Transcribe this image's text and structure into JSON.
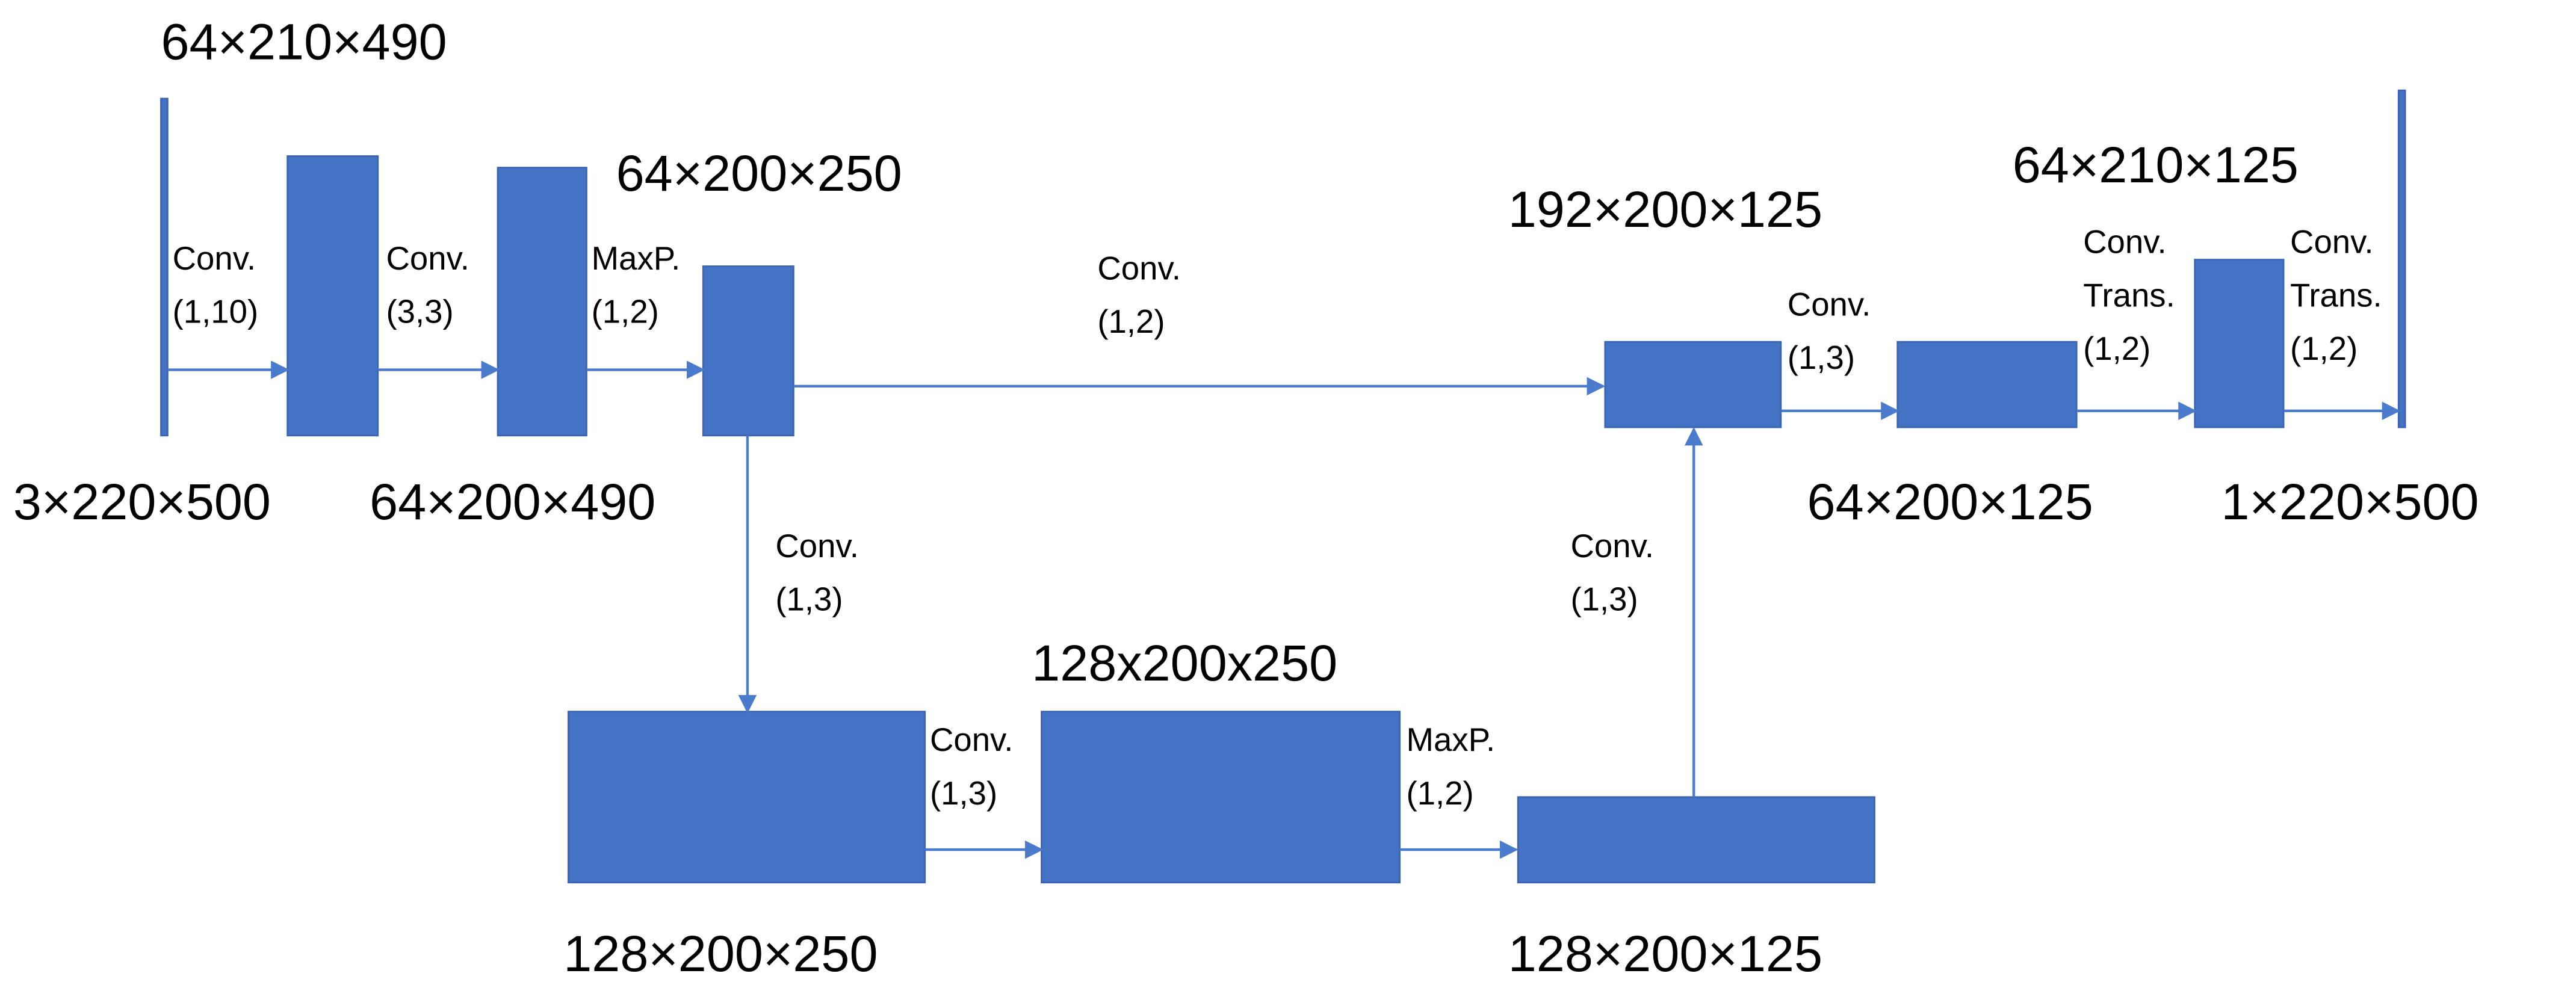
{
  "dimension_labels": [
    "64×210×490",
    "3×220×500",
    "64×200×490",
    "64×200×250",
    "128x200x250",
    "128×200×250",
    "128×200×125",
    "192×200×125",
    "64×210×125",
    "64×200×125",
    "1×220×500"
  ],
  "operations": [
    {
      "lines": [
        "Conv.",
        "(1,10)"
      ]
    },
    {
      "lines": [
        "Conv.",
        "(3,3)"
      ]
    },
    {
      "lines": [
        "MaxP.",
        "(1,2)"
      ]
    },
    {
      "lines": [
        "Conv.",
        "(1,2)"
      ]
    },
    {
      "lines": [
        "Conv.",
        "(1,3)"
      ]
    },
    {
      "lines": [
        "Conv.",
        "(1,3)"
      ]
    },
    {
      "lines": [
        "MaxP.",
        "(1,2)"
      ]
    },
    {
      "lines": [
        "Conv.",
        "(1,3)"
      ]
    },
    {
      "lines": [
        "Conv.",
        "(1,3)"
      ]
    },
    {
      "lines": [
        "Conv.",
        "Trans.",
        "(1,2)"
      ]
    },
    {
      "lines": [
        "Conv.",
        "Trans.",
        "(1,2)"
      ]
    }
  ]
}
